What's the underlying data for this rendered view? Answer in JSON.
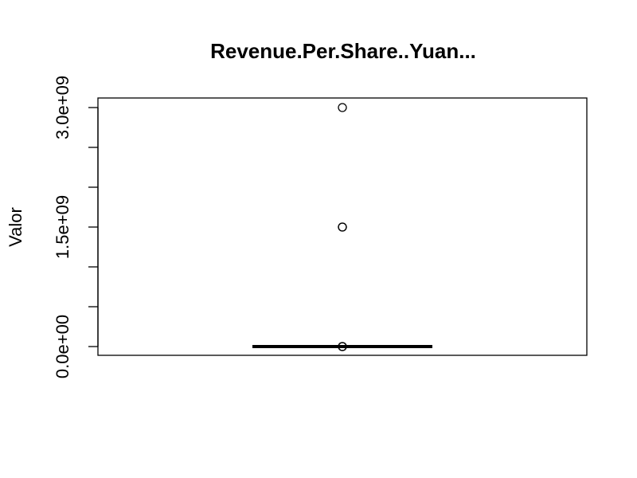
{
  "chart_data": {
    "type": "boxplot",
    "title": "Revenue.Per.Share..Yuan...",
    "xlabel": "",
    "ylabel": "Valor",
    "ylim": [
      -80000000,
      3100000000
    ],
    "y_ticks": [
      0,
      500000000,
      1000000000,
      1500000000,
      2000000000,
      2500000000,
      3000000000
    ],
    "y_tick_labels": [
      {
        "value": 0,
        "label": "0.0e+00"
      },
      {
        "value": 1500000000,
        "label": "1.5e+09"
      },
      {
        "value": 3000000000,
        "label": "3.0e+09"
      }
    ],
    "box": {
      "min": 0,
      "q1": 0,
      "median": 0,
      "q3": 0,
      "max": 0
    },
    "outliers": [
      3000000000,
      1500000000,
      1500000000,
      0,
      0,
      0
    ],
    "grid": false,
    "legend": "none"
  }
}
